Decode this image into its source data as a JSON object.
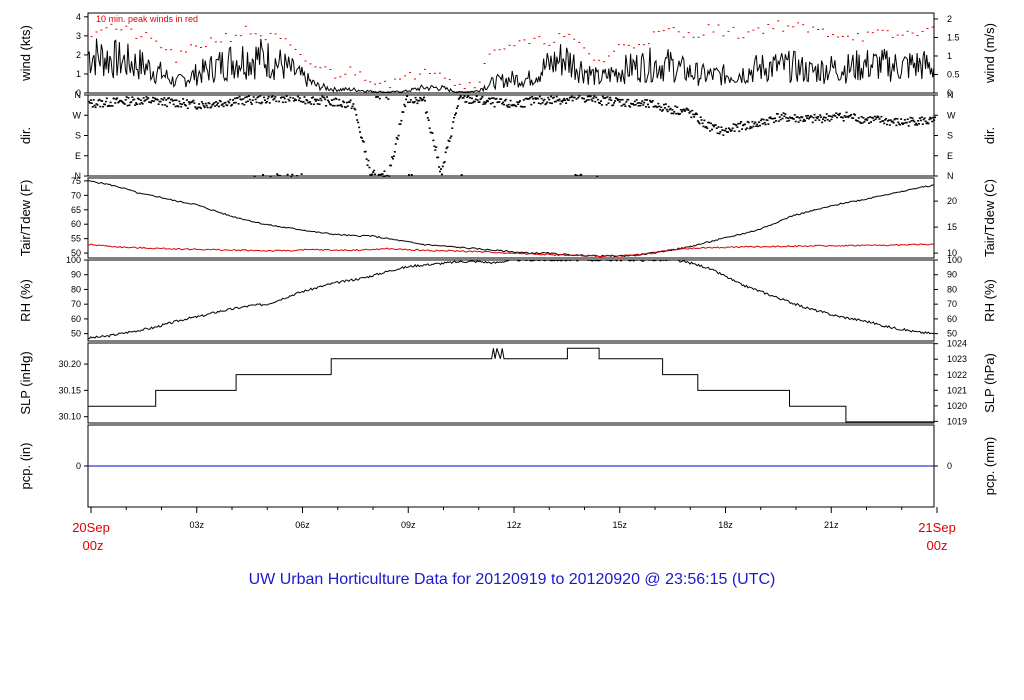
{
  "title": "UW Urban Horticulture Data for 20120919  to  20120920 @ 23:56:15  (UTC)",
  "colors": {
    "main": "#000000",
    "red": "#e00000",
    "blue": "#1a1acc",
    "precip": "#0000cc"
  },
  "chart_data": [
    {
      "id": "wind",
      "type": "line",
      "ylabel_left": "wind (kts)",
      "ylabel_right": "wind (m/s)",
      "ylim": [
        0,
        4.2
      ],
      "left_ticks": [
        "0",
        "1",
        "2",
        "3",
        "4"
      ],
      "right_ticks": [
        "0",
        "0.5",
        "1",
        "1.5",
        "2"
      ],
      "annotation": "10 min. peak winds in red",
      "series": [
        {
          "name": "",
          "values": [
            2.2,
            2.0,
            1.8,
            1.6,
            1.2,
            0.6,
            1.0,
            1.4,
            1.8,
            2.0,
            2.0,
            1.6,
            1.0,
            0.4,
            0.2,
            0.2,
            0.1,
            0.05,
            0.1,
            0.3,
            0.3,
            0.05,
            0.1,
            0.6,
            0.8,
            0.8,
            1.5,
            2.0,
            1.4,
            0.8,
            1.2,
            1.5,
            1.6,
            1.6,
            1.2,
            1.0,
            1.0,
            1.1,
            1.4,
            1.5,
            1.5,
            1.2,
            1.4,
            1.4,
            1.6,
            1.6,
            1.5,
            1.6,
            1.5
          ]
        },
        {
          "name": "",
          "values": [
            3.2,
            3.6,
            3.3,
            3.0,
            2.6,
            1.8,
            2.4,
            2.8,
            3.0,
            3.3,
            3.0,
            2.8,
            1.8,
            1.4,
            1.0,
            1.2,
            0.8,
            0.6,
            0.7,
            1.4,
            1.2,
            0.4,
            0.6,
            2.4,
            2.6,
            2.6,
            2.8,
            3.0,
            2.4,
            1.6,
            2.4,
            2.6,
            3.0,
            3.3,
            3.0,
            3.4,
            3.3,
            3.1,
            3.4,
            3.6,
            3.5,
            3.3,
            3.2,
            3.1,
            3.0,
            3.1,
            3.0,
            3.3,
            3.2
          ]
        }
      ]
    },
    {
      "id": "dir",
      "type": "scatter",
      "ylabel_left": "dir.",
      "ylabel_right": "dir.",
      "ylim": [
        0,
        360
      ],
      "left_ticks": [
        "N",
        "E",
        "S",
        "W",
        "N"
      ],
      "right_ticks": [
        "N",
        "E",
        "S",
        "W",
        "N"
      ],
      "series": [
        {
          "name": "",
          "values": [
            325,
            330,
            335,
            340,
            335,
            330,
            320,
            325,
            335,
            340,
            345,
            350,
            345,
            340,
            330,
            320,
            10,
            5,
            350,
            340,
            15,
            345,
            340,
            330,
            320,
            335,
            340,
            345,
            350,
            340,
            335,
            325,
            320,
            300,
            290,
            230,
            200,
            225,
            235,
            265,
            260,
            255,
            265,
            270,
            255,
            250,
            240,
            250,
            245
          ]
        }
      ]
    },
    {
      "id": "temp",
      "type": "line",
      "ylabel_left": "Tair/Tdew (F)",
      "ylabel_right": "Tair/Tdew (C)",
      "ylim": [
        48.3,
        76
      ],
      "left_ticks": [
        "50",
        "55",
        "60",
        "65",
        "70",
        "75"
      ],
      "right_ticks": [
        "10",
        "15",
        "20"
      ],
      "series": [
        {
          "name": "",
          "values": [
            75,
            74,
            72.5,
            70.5,
            69.5,
            68,
            67,
            65,
            63,
            61.5,
            60,
            59,
            58.2,
            57.2,
            56.5,
            56,
            56,
            55,
            54,
            53,
            52.5,
            52,
            51.5,
            51,
            50.5,
            50,
            50,
            49.5,
            49.2,
            49,
            49,
            49.2,
            50,
            51,
            52,
            53.5,
            55,
            56.5,
            58,
            60.5,
            63,
            64.5,
            66,
            67.5,
            68.5,
            70,
            71,
            72.5,
            73.5
          ]
        },
        {
          "name": "",
          "values": [
            53,
            52.5,
            52,
            51.8,
            51.6,
            51.5,
            51.3,
            51.2,
            51,
            51,
            50.8,
            50.8,
            51,
            51.2,
            51,
            51,
            51.2,
            51.5,
            51.2,
            51,
            50.8,
            50.7,
            50.5,
            50.3,
            50,
            49.8,
            49.5,
            49.3,
            49.1,
            49,
            49,
            49.3,
            50,
            51,
            51.5,
            51.8,
            52,
            52.1,
            52.2,
            52.3,
            52.4,
            52.5,
            52.5,
            52.6,
            52.7,
            52.7,
            52.8,
            53,
            53
          ]
        }
      ]
    },
    {
      "id": "rh",
      "type": "line",
      "ylabel_left": "RH (%)",
      "ylabel_right": "RH (%)",
      "ylim": [
        45,
        100
      ],
      "left_ticks": [
        "50",
        "60",
        "70",
        "80",
        "90",
        "100"
      ],
      "right_ticks": [
        "50",
        "60",
        "70",
        "80",
        "90",
        "100"
      ],
      "series": [
        {
          "name": "",
          "values": [
            47,
            48,
            50,
            52,
            54,
            57,
            60,
            62,
            65,
            67,
            69,
            70,
            74,
            78,
            81,
            84,
            86,
            88,
            91,
            94,
            96,
            97,
            98,
            99,
            99,
            98,
            100,
            100,
            100,
            100,
            100,
            100,
            100,
            100,
            100,
            100,
            100,
            98,
            95,
            90,
            84,
            80,
            76,
            72,
            68,
            65,
            62,
            60,
            58,
            55,
            53,
            51,
            50
          ]
        }
      ]
    },
    {
      "id": "slp",
      "type": "line",
      "ylabel_left": "SLP (inHg)",
      "ylabel_right": "SLP (hPa)",
      "ylim": [
        30.088,
        30.24
      ],
      "left_ticks": [
        "30.10",
        "30.15",
        "30.20"
      ],
      "right_ticks": [
        "1019",
        "1020",
        "1021",
        "1022",
        "1023",
        "1024"
      ],
      "x": [
        0,
        1.92,
        1.92,
        4.2,
        4.2,
        6.9,
        6.9,
        11.45,
        11.5,
        11.55,
        11.6,
        11.7,
        11.75,
        11.8,
        11.85,
        13.6,
        13.6,
        14.5,
        14.5,
        16.3,
        16.3,
        17.3,
        17.3,
        19.9,
        19.9,
        21.5,
        21.5,
        24
      ],
      "series": [
        {
          "name": "",
          "values": [
            30.12,
            30.12,
            30.15,
            30.15,
            30.18,
            30.18,
            30.21,
            30.21,
            30.23,
            30.21,
            30.23,
            30.21,
            30.23,
            30.21,
            30.21,
            30.21,
            30.23,
            30.23,
            30.21,
            30.21,
            30.18,
            30.18,
            30.15,
            30.15,
            30.12,
            30.12,
            30.09,
            30.09
          ]
        }
      ]
    },
    {
      "id": "pcp",
      "type": "line",
      "ylabel_left": "pcp. (in)",
      "ylabel_right": "pcp. (mm)",
      "ylim": [
        -1,
        1
      ],
      "left_ticks": [
        "0"
      ],
      "right_ticks": [
        "0"
      ],
      "series": [
        {
          "name": "",
          "values": [
            0,
            0
          ]
        }
      ]
    }
  ],
  "x_axis": {
    "start_label": [
      "20Sep",
      "00z"
    ],
    "end_label": [
      "21Sep",
      "00z"
    ],
    "ticks": [
      "03z",
      "06z",
      "09z",
      "12z",
      "15z",
      "18z",
      "21z"
    ]
  }
}
